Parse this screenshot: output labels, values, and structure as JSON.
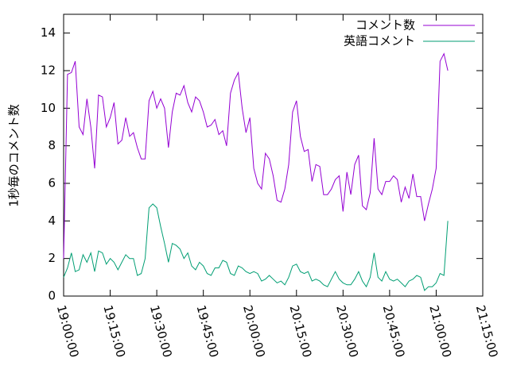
{
  "chart_data": {
    "type": "line",
    "ylabel": "1秒毎のコメント数",
    "x": [
      "19:00:00",
      "19:01:15",
      "19:02:30",
      "19:03:45",
      "19:05:00",
      "19:06:15",
      "19:07:30",
      "19:08:45",
      "19:10:00",
      "19:11:15",
      "19:12:30",
      "19:13:45",
      "19:15:00",
      "19:16:15",
      "19:17:30",
      "19:18:45",
      "19:20:00",
      "19:21:15",
      "19:22:30",
      "19:23:45",
      "19:25:00",
      "19:26:15",
      "19:27:30",
      "19:28:45",
      "19:30:00",
      "19:31:15",
      "19:32:30",
      "19:33:45",
      "19:35:00",
      "19:36:15",
      "19:37:30",
      "19:38:45",
      "19:40:00",
      "19:41:15",
      "19:42:30",
      "19:43:45",
      "19:45:00",
      "19:46:15",
      "19:47:30",
      "19:48:45",
      "19:50:00",
      "19:51:15",
      "19:52:30",
      "19:53:45",
      "19:55:00",
      "19:56:15",
      "19:57:30",
      "19:58:45",
      "20:00:00",
      "20:01:15",
      "20:02:30",
      "20:03:45",
      "20:05:00",
      "20:06:15",
      "20:07:30",
      "20:08:45",
      "20:10:00",
      "20:11:15",
      "20:12:30",
      "20:13:45",
      "20:15:00",
      "20:16:15",
      "20:17:30",
      "20:18:45",
      "20:20:00",
      "20:21:15",
      "20:22:30",
      "20:23:45",
      "20:25:00",
      "20:26:15",
      "20:27:30",
      "20:28:45",
      "20:30:00",
      "20:31:15",
      "20:32:30",
      "20:33:45",
      "20:35:00",
      "20:36:15",
      "20:37:30",
      "20:38:45",
      "20:40:00",
      "20:41:15",
      "20:42:30",
      "20:43:45",
      "20:45:00",
      "20:46:15",
      "20:47:30",
      "20:48:45",
      "20:50:00",
      "20:51:15",
      "20:52:30",
      "20:53:45",
      "20:55:00",
      "20:56:15",
      "20:57:30",
      "20:58:45",
      "21:00:00",
      "21:01:15",
      "21:02:30",
      "21:03:45"
    ],
    "series": [
      {
        "name": "コメント数",
        "color": "#9400d3",
        "values": [
          2.0,
          11.8,
          11.9,
          12.5,
          9.0,
          8.6,
          10.5,
          9.0,
          6.8,
          10.7,
          10.6,
          9.0,
          9.5,
          10.3,
          8.1,
          8.3,
          9.5,
          8.5,
          8.7,
          7.9,
          7.3,
          7.3,
          10.4,
          10.9,
          10.0,
          10.5,
          10.0,
          7.9,
          9.8,
          10.8,
          10.7,
          11.2,
          10.3,
          9.8,
          10.6,
          10.4,
          9.8,
          9.0,
          9.1,
          9.4,
          8.6,
          8.8,
          8.0,
          10.8,
          11.5,
          11.9,
          10.0,
          8.7,
          9.5,
          6.8,
          6.0,
          5.7,
          7.6,
          7.3,
          6.4,
          5.1,
          5.0,
          5.7,
          7.0,
          9.8,
          10.4,
          8.5,
          7.7,
          7.8,
          6.1,
          7.0,
          6.9,
          5.4,
          5.4,
          5.7,
          6.2,
          6.4,
          4.5,
          6.6,
          5.4,
          7.0,
          7.5,
          4.8,
          4.6,
          5.5,
          8.4,
          5.7,
          5.4,
          6.1,
          6.1,
          6.4,
          6.2,
          5.0,
          5.8,
          5.2,
          6.5,
          5.3,
          5.3,
          4.0,
          4.9,
          5.7,
          6.8,
          12.5,
          12.9,
          12.0
        ]
      },
      {
        "name": "英語コメント",
        "color": "#009e73",
        "values": [
          1.0,
          1.5,
          2.3,
          1.3,
          1.4,
          2.2,
          1.8,
          2.3,
          1.3,
          2.4,
          2.3,
          1.7,
          2.0,
          1.8,
          1.4,
          1.8,
          2.2,
          2.0,
          2.0,
          1.1,
          1.2,
          2.0,
          4.7,
          4.9,
          4.7,
          3.7,
          2.8,
          1.8,
          2.8,
          2.7,
          2.5,
          2.0,
          2.3,
          1.6,
          1.4,
          1.8,
          1.6,
          1.2,
          1.1,
          1.5,
          1.5,
          1.9,
          1.8,
          1.2,
          1.1,
          1.6,
          1.5,
          1.3,
          1.2,
          1.3,
          1.2,
          0.8,
          0.9,
          1.1,
          0.9,
          0.7,
          0.8,
          0.6,
          1.0,
          1.6,
          1.7,
          1.3,
          1.2,
          1.3,
          0.8,
          0.9,
          0.8,
          0.6,
          0.5,
          0.9,
          1.3,
          0.9,
          0.7,
          0.6,
          0.6,
          0.9,
          1.3,
          0.8,
          0.5,
          1.0,
          2.3,
          1.0,
          0.8,
          1.3,
          0.9,
          0.8,
          0.9,
          0.7,
          0.5,
          0.8,
          0.9,
          1.1,
          1.0,
          0.3,
          0.5,
          0.5,
          0.7,
          1.2,
          1.1,
          4.0
        ]
      }
    ],
    "xlim": [
      "19:00:00",
      "21:15:00"
    ],
    "xticks": [
      "19:00:00",
      "19:15:00",
      "19:30:00",
      "19:45:00",
      "20:00:00",
      "20:15:00",
      "20:30:00",
      "20:45:00",
      "21:00:00",
      "21:15:00"
    ],
    "ylim": [
      0,
      15
    ],
    "yticks": [
      0,
      2,
      4,
      6,
      8,
      10,
      12,
      14
    ],
    "grid": false,
    "legend": "top-right"
  }
}
